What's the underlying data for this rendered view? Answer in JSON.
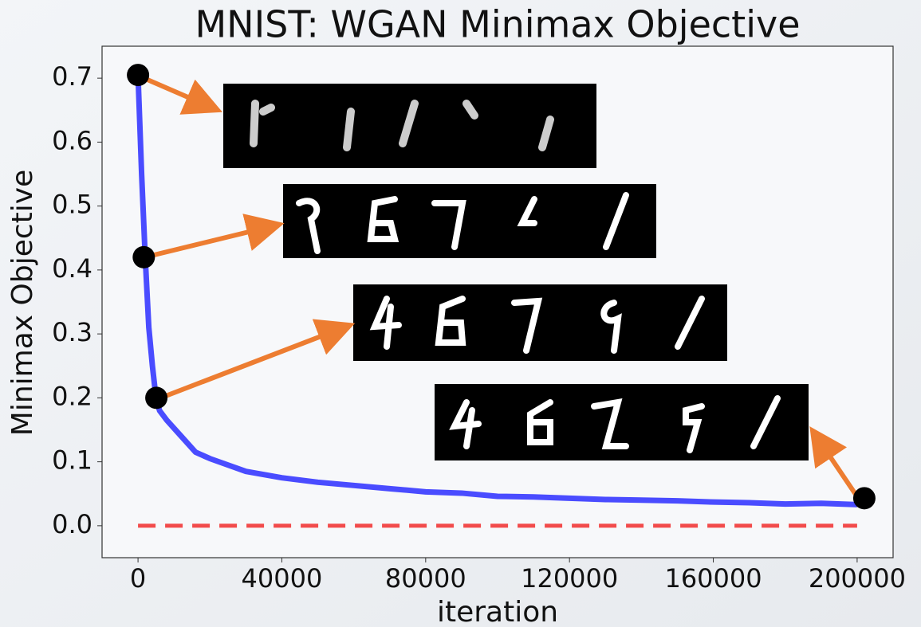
{
  "chart_data": {
    "type": "line",
    "title": "MNIST: WGAN Minimax Objective",
    "x_label": "iteration",
    "y_label": "Minimax Objective",
    "x": [
      0,
      1000,
      2000,
      3000,
      4000,
      5000,
      6000,
      8000,
      12000,
      16000,
      20000,
      30000,
      40000,
      50000,
      60000,
      70000,
      80000,
      90000,
      100000,
      110000,
      120000,
      130000,
      140000,
      150000,
      160000,
      170000,
      180000,
      190000,
      200000
    ],
    "series": [
      {
        "color": "#4a4cff",
        "values": [
          0.705,
          0.55,
          0.42,
          0.31,
          0.25,
          0.2,
          0.18,
          0.165,
          0.14,
          0.115,
          0.105,
          0.085,
          0.075,
          0.068,
          0.063,
          0.058,
          0.053,
          0.051,
          0.046,
          0.045,
          0.043,
          0.041,
          0.04,
          0.039,
          0.037,
          0.036,
          0.034,
          0.035,
          0.033
        ]
      }
    ],
    "reference_line": {
      "x": [
        0,
        200000
      ],
      "values": [
        0,
        0
      ],
      "color": "#f24b4b",
      "dashed": true
    },
    "markers": {
      "x": [
        0,
        1600,
        5100,
        202000
      ],
      "y": [
        0.705,
        0.42,
        0.2,
        0.043
      ],
      "color": "#000000"
    },
    "xlim": [
      -10000,
      210000
    ],
    "ylim": [
      -0.05,
      0.75
    ],
    "xticks": [
      0,
      40000,
      80000,
      120000,
      160000,
      200000
    ],
    "yticks": [
      {
        "value": 0,
        "label": "0.0"
      },
      0.1,
      0.2,
      0.3,
      0.4,
      0.5,
      0.6,
      0.7
    ],
    "grid": false
  }
}
